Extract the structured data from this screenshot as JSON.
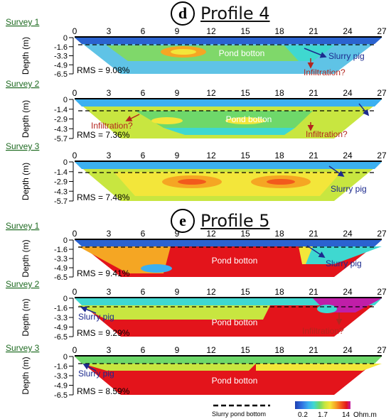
{
  "profile_d": {
    "letter": "d",
    "title": "Profile 4",
    "surveys": [
      {
        "label": "Survey 1",
        "depths": [
          "0",
          "-1.6",
          "-3.3",
          "-4.9",
          "-6.5"
        ],
        "rms": "RMS = 9.08%",
        "annotations": [
          "Pond botton",
          "Slurry pig",
          "Infiltration?"
        ]
      },
      {
        "label": "Survey 2",
        "depths": [
          "0",
          "-1.4",
          "-2.9",
          "-4.3",
          "-5.7"
        ],
        "rms": "RMS = 7.36%",
        "annotations": [
          "Pond botton",
          "Infiltration?",
          "Infiltration?"
        ]
      },
      {
        "label": "Survey 3",
        "depths": [
          "0",
          "-1.4",
          "-2.9",
          "-4.3",
          "-5.7"
        ],
        "rms": "RMS = 7.48%",
        "annotations": [
          "Slurry pig"
        ]
      }
    ]
  },
  "profile_e": {
    "letter": "e",
    "title": "Profile 5",
    "surveys": [
      {
        "label": "Survey 1",
        "depths": [
          "0",
          "-1.6",
          "-3.3",
          "-4.9",
          "-6.5"
        ],
        "rms": "RMS = 9.41%",
        "annotations": [
          "Pond botton",
          "Slurry pig"
        ]
      },
      {
        "label": "Survey 2",
        "depths": [
          "0",
          "-1.6",
          "-3.3",
          "-4.9",
          "-6.5"
        ],
        "rms": "RMS = 9.29%",
        "annotations": [
          "Slurry pig",
          "Pond botton",
          "Infiltration?"
        ]
      },
      {
        "label": "Survey 3",
        "depths": [
          "0",
          "-1.6",
          "-3.3",
          "-4.9",
          "-6.5"
        ],
        "rms": "RMS = 8.59%",
        "annotations": [
          "Slurry pig",
          "Pond botton"
        ]
      }
    ]
  },
  "x_ticks": [
    "0",
    "3",
    "6",
    "9",
    "12",
    "15",
    "18",
    "21",
    "24",
    "27"
  ],
  "y_axis_label": "Depth (m)",
  "legend": {
    "line_label": "Slurry pond bottom",
    "colorbar_ticks": [
      "0.2",
      "1.7",
      "14"
    ],
    "unit": "Ohm.m",
    "colors": [
      "#1e3fb0",
      "#2f6fe0",
      "#3cb0f0",
      "#3fd8d0",
      "#6ed86a",
      "#c8e640",
      "#f3e63a",
      "#f5a623",
      "#f25a1c",
      "#e3141b",
      "#c01ea8"
    ]
  },
  "colors": {
    "survey_label": "#1f6b22",
    "annotation_light": "#ffffff",
    "annotation_blue": "#1c2a8e",
    "annotation_red": "#b3261e"
  }
}
